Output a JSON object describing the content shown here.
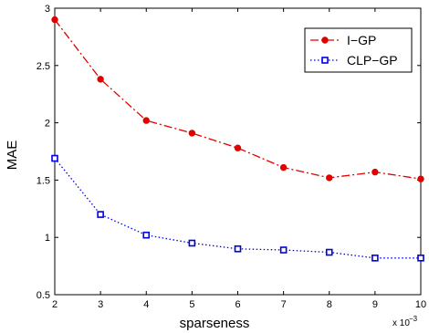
{
  "chart_data": {
    "type": "line",
    "x": [
      2,
      3,
      4,
      5,
      6,
      7,
      8,
      9,
      10
    ],
    "series": [
      {
        "name": "I−GP",
        "values": [
          2.9,
          2.38,
          2.02,
          1.91,
          1.78,
          1.61,
          1.52,
          1.57,
          1.51
        ],
        "color": "#e00000",
        "line_style": "dash-dot",
        "marker": "filled-circle"
      },
      {
        "name": "CLP−GP",
        "values": [
          1.69,
          1.2,
          1.02,
          0.95,
          0.9,
          0.89,
          0.87,
          0.82,
          0.82
        ],
        "color": "#0000e6",
        "line_style": "dotted",
        "marker": "open-square"
      }
    ],
    "xlabel": "sparseness",
    "ylabel": "MAE",
    "xlim": [
      2,
      10
    ],
    "ylim": [
      0.5,
      3
    ],
    "xticks": [
      "2",
      "3",
      "4",
      "5",
      "6",
      "7",
      "8",
      "9",
      "10"
    ],
    "yticks": [
      "0.5",
      "1",
      "1.5",
      "2",
      "2.5",
      "3"
    ],
    "x_multiplier": {
      "base": "x 10",
      "exponent": "−3"
    },
    "grid": false,
    "legend_position": "top-right"
  }
}
